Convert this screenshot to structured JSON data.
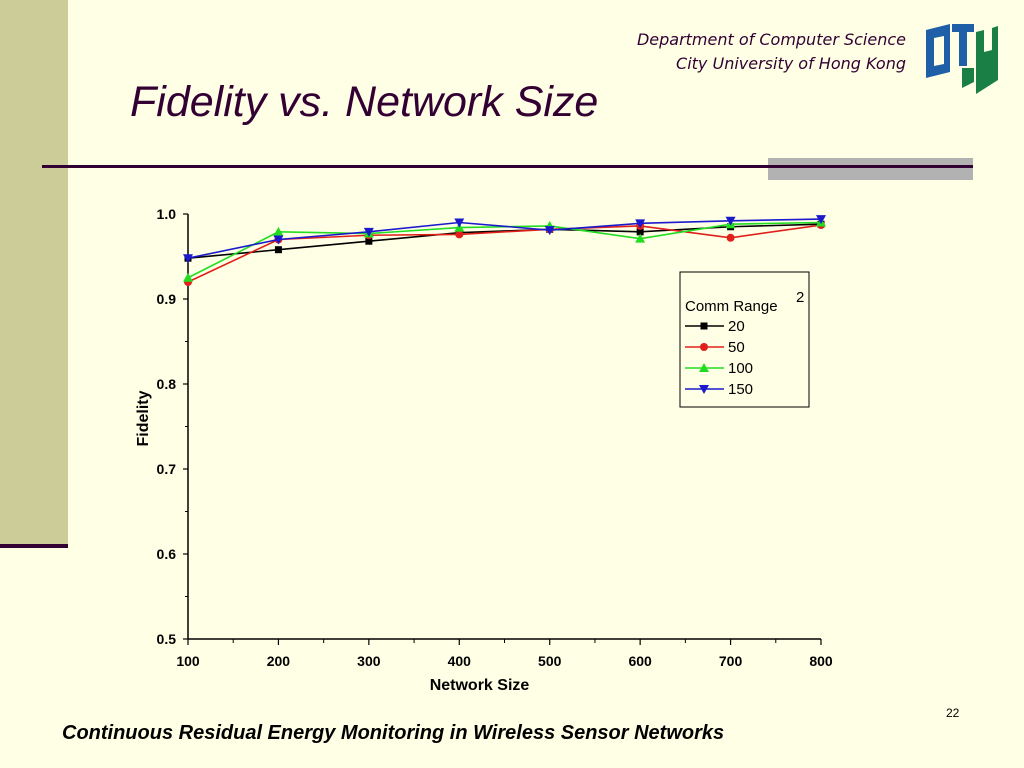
{
  "slide": {
    "title": "Fidelity vs. Network Size",
    "dept_line1": "Department of Computer Science",
    "dept_line2": "City University of Hong Kong",
    "page_number": "22",
    "footer": "Continuous Residual Energy Monitoring in Wireless Sensor Networks"
  },
  "colors": {
    "background": "#FFFFE5",
    "accent": "#330033",
    "sidebar": "#CCCC99",
    "logo_blue": "#1F5FA8",
    "logo_green": "#1A7F45"
  },
  "chart_data": {
    "type": "line",
    "title": "",
    "xlabel": "Network Size",
    "ylabel": "Fidelity",
    "x": [
      100,
      200,
      300,
      400,
      500,
      600,
      700,
      800
    ],
    "xlim": [
      100,
      800
    ],
    "ylim": [
      0.5,
      1.0
    ],
    "yticks": [
      "0.5",
      "0.6",
      "0.7",
      "0.8",
      "0.9",
      "1.0"
    ],
    "xticks": [
      "100",
      "200",
      "300",
      "400",
      "500",
      "600",
      "700",
      "800"
    ],
    "grid": false,
    "legend_title": "Comm Range",
    "legend_title_note": "2",
    "legend_position": "right",
    "series": [
      {
        "name": "20",
        "color": "#000000",
        "marker": "square",
        "values": [
          0.948,
          0.958,
          0.968,
          0.978,
          0.982,
          0.979,
          0.985,
          0.988
        ]
      },
      {
        "name": "50",
        "color": "#E0201B",
        "marker": "circle",
        "values": [
          0.92,
          0.97,
          0.975,
          0.976,
          0.982,
          0.986,
          0.972,
          0.987
        ]
      },
      {
        "name": "100",
        "color": "#22DD22",
        "marker": "triangle-up",
        "values": [
          0.925,
          0.979,
          0.977,
          0.984,
          0.986,
          0.971,
          0.988,
          0.99
        ]
      },
      {
        "name": "150",
        "color": "#1A1ACC",
        "marker": "triangle-down",
        "values": [
          0.948,
          0.97,
          0.979,
          0.99,
          0.981,
          0.989,
          0.992,
          0.994
        ]
      }
    ]
  }
}
